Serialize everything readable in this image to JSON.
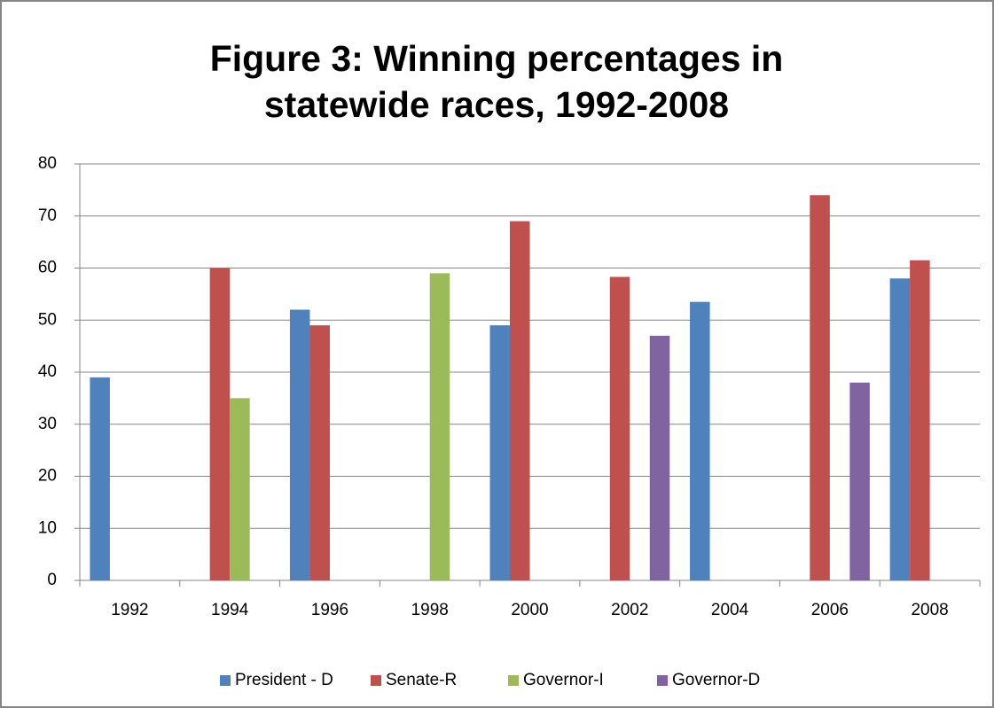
{
  "chart_data": {
    "type": "bar",
    "title": "Figure 3: Winning percentages in statewide races, 1992-2008",
    "categories": [
      "1992",
      "1994",
      "1996",
      "1998",
      "2000",
      "2002",
      "2004",
      "2006",
      "2008"
    ],
    "series": [
      {
        "name": "President - D",
        "color": "#4f81bd",
        "values": [
          39,
          null,
          52,
          null,
          49,
          null,
          53.5,
          null,
          58
        ]
      },
      {
        "name": "Senate-R",
        "color": "#c0504d",
        "values": [
          null,
          60,
          49,
          null,
          69,
          58.3,
          null,
          74,
          61.5
        ]
      },
      {
        "name": "Governor-I",
        "color": "#9bbb59",
        "values": [
          null,
          35,
          null,
          59,
          null,
          null,
          null,
          null,
          null
        ]
      },
      {
        "name": "Governor-D",
        "color": "#8064a2",
        "values": [
          null,
          null,
          null,
          null,
          null,
          47,
          null,
          38,
          null
        ]
      }
    ],
    "ylim": [
      0,
      80
    ],
    "yticks": [
      0,
      10,
      20,
      30,
      40,
      50,
      60,
      70,
      80
    ],
    "grid": true,
    "legend": "bottom"
  }
}
